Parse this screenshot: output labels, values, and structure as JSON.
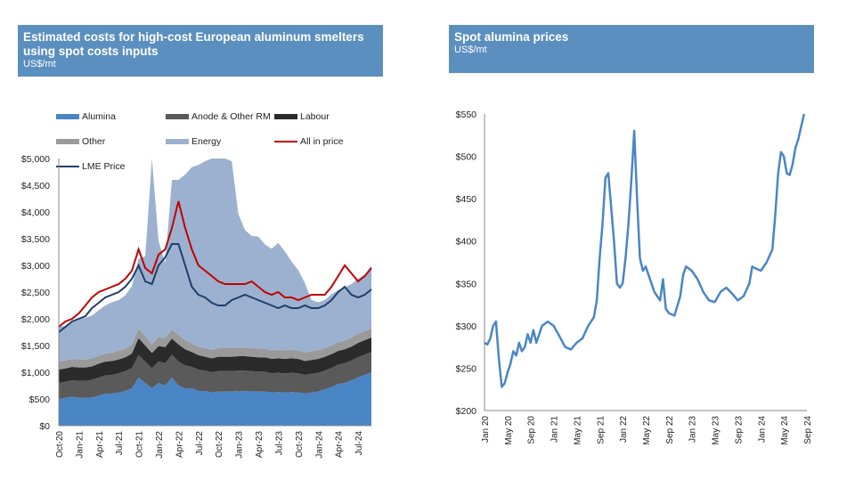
{
  "left_header": {
    "title": "Estimated costs for high-cost European aluminum smelters using spot costs inputs",
    "unit": "US$/mt"
  },
  "right_header": {
    "title": "Spot alumina prices",
    "unit": "US$/mt"
  },
  "legend": [
    {
      "label": "Alumina",
      "color": "#4a86c5",
      "kind": "area"
    },
    {
      "label": "Anode & Other RM",
      "color": "#5a5a5a",
      "kind": "area"
    },
    {
      "label": "Labour",
      "color": "#2b2b2b",
      "kind": "area"
    },
    {
      "label": "Other",
      "color": "#9a9a9a",
      "kind": "area"
    },
    {
      "label": "Energy",
      "color": "#9bb1cf",
      "kind": "area"
    },
    {
      "label": "All in price",
      "color": "#c00000",
      "kind": "line"
    },
    {
      "label": "LME Price",
      "color": "#1f3f6b",
      "kind": "line"
    }
  ],
  "chart_data": [
    {
      "type": "area",
      "title": "Estimated costs for high-cost European aluminum smelters using spot costs inputs",
      "ylabel": "US$/mt",
      "ylim": [
        0,
        5000
      ],
      "yticks": [
        "$0",
        "$500",
        "$1,000",
        "$1,500",
        "$2,000",
        "$2,500",
        "$3,000",
        "$3,500",
        "$4,000",
        "$4,500",
        "$5,000"
      ],
      "xticks": [
        "Oct-20",
        "Jan-21",
        "Apr-21",
        "Jul-21",
        "Oct-21",
        "Jan-22",
        "Apr-22",
        "Jul-22",
        "Oct-22",
        "Jan-23",
        "Apr-23",
        "Jul-23",
        "Oct-23",
        "Jan-24",
        "Apr-24",
        "Jul-24"
      ],
      "x_months": [
        "Oct-20",
        "Nov-20",
        "Dec-20",
        "Jan-21",
        "Feb-21",
        "Mar-21",
        "Apr-21",
        "May-21",
        "Jun-21",
        "Jul-21",
        "Aug-21",
        "Sep-21",
        "Oct-21",
        "Nov-21",
        "Dec-21",
        "Jan-22",
        "Feb-22",
        "Mar-22",
        "Apr-22",
        "May-22",
        "Jun-22",
        "Jul-22",
        "Aug-22",
        "Sep-22",
        "Oct-22",
        "Nov-22",
        "Dec-22",
        "Jan-23",
        "Feb-23",
        "Mar-23",
        "Apr-23",
        "May-23",
        "Jun-23",
        "Jul-23",
        "Aug-23",
        "Sep-23",
        "Oct-23",
        "Nov-23",
        "Dec-23",
        "Jan-24",
        "Feb-24",
        "Mar-24",
        "Apr-24",
        "May-24",
        "Jun-24",
        "Jul-24",
        "Aug-24",
        "Sep-24"
      ],
      "series": [
        {
          "name": "Alumina",
          "stacked": true,
          "values": [
            500,
            520,
            540,
            520,
            520,
            530,
            560,
            600,
            600,
            620,
            650,
            700,
            900,
            800,
            700,
            800,
            750,
            900,
            750,
            700,
            700,
            650,
            650,
            620,
            640,
            640,
            640,
            650,
            650,
            640,
            640,
            640,
            620,
            630,
            620,
            630,
            620,
            600,
            620,
            640,
            680,
            720,
            780,
            800,
            850,
            900,
            950,
            1000
          ]
        },
        {
          "name": "Anode & Other RM",
          "stacked": true,
          "values": [
            300,
            300,
            310,
            320,
            320,
            330,
            340,
            340,
            350,
            360,
            370,
            380,
            420,
            400,
            380,
            400,
            420,
            430,
            450,
            430,
            400,
            400,
            380,
            380,
            380,
            380,
            380,
            380,
            380,
            380,
            370,
            370,
            360,
            360,
            360,
            360,
            360,
            350,
            350,
            350,
            350,
            360,
            360,
            370,
            370,
            380,
            380,
            380
          ]
        },
        {
          "name": "Labour",
          "stacked": true,
          "values": [
            250,
            250,
            250,
            250,
            250,
            250,
            260,
            260,
            260,
            260,
            260,
            270,
            320,
            300,
            280,
            290,
            300,
            300,
            320,
            300,
            280,
            270,
            260,
            260,
            270,
            270,
            270,
            270,
            270,
            270,
            270,
            270,
            270,
            270,
            270,
            270,
            270,
            260,
            260,
            260,
            260,
            260,
            260,
            260,
            260,
            270,
            270,
            270
          ]
        },
        {
          "name": "Other",
          "stacked": true,
          "values": [
            150,
            150,
            150,
            150,
            150,
            150,
            150,
            150,
            150,
            160,
            160,
            160,
            180,
            170,
            160,
            170,
            170,
            170,
            180,
            170,
            160,
            160,
            160,
            160,
            160,
            160,
            160,
            160,
            160,
            160,
            160,
            160,
            160,
            160,
            160,
            160,
            160,
            160,
            160,
            160,
            160,
            160,
            160,
            160,
            170,
            170,
            170,
            170
          ]
        },
        {
          "name": "Energy",
          "stacked": true,
          "values": [
            650,
            650,
            700,
            750,
            780,
            800,
            850,
            900,
            950,
            950,
            1000,
            1100,
            1300,
            1500,
            3700,
            1800,
            1400,
            2800,
            2900,
            3100,
            3300,
            3400,
            3500,
            3600,
            3600,
            3600,
            3500,
            2500,
            2200,
            2100,
            2100,
            1950,
            1900,
            2000,
            1850,
            1650,
            1500,
            1300,
            960,
            900,
            900,
            960,
            980,
            1000,
            1000,
            1030,
            1050,
            1180
          ]
        },
        {
          "name": "All in price",
          "values": [
            1850,
            1950,
            2000,
            2100,
            2250,
            2400,
            2500,
            2550,
            2600,
            2650,
            2750,
            2900,
            3300,
            2950,
            2850,
            3200,
            3300,
            3700,
            4200,
            3700,
            3300,
            3000,
            2900,
            2800,
            2700,
            2650,
            2650,
            2650,
            2650,
            2700,
            2600,
            2500,
            2450,
            2500,
            2400,
            2400,
            2350,
            2400,
            2450,
            2450,
            2450,
            2600,
            2800,
            3000,
            2850,
            2700,
            2800,
            2950
          ]
        },
        {
          "name": "LME Price",
          "values": [
            1750,
            1850,
            1950,
            2000,
            2050,
            2200,
            2300,
            2400,
            2450,
            2500,
            2600,
            2750,
            3000,
            2700,
            2650,
            3000,
            3150,
            3400,
            3400,
            3000,
            2600,
            2450,
            2400,
            2300,
            2250,
            2250,
            2350,
            2400,
            2450,
            2400,
            2350,
            2300,
            2250,
            2200,
            2250,
            2200,
            2200,
            2250,
            2200,
            2200,
            2250,
            2350,
            2500,
            2600,
            2450,
            2400,
            2450,
            2550
          ]
        }
      ]
    },
    {
      "type": "line",
      "title": "Spot alumina prices",
      "ylabel": "US$/mt",
      "ylim": [
        200,
        550
      ],
      "yticks": [
        "$200",
        "$250",
        "$300",
        "$350",
        "$400",
        "$450",
        "$500",
        "$550"
      ],
      "xticks": [
        "Jan 20",
        "May 20",
        "Sep 20",
        "Jan 21",
        "May 21",
        "Sep 21",
        "Jan 22",
        "May 22",
        "Sep 22",
        "Jan 23",
        "May 23",
        "Sep 23",
        "Jan 24",
        "May 24",
        "Sep 24"
      ],
      "series": [
        {
          "name": "Spot alumina",
          "points": [
            [
              0,
              280
            ],
            [
              0.5,
              278
            ],
            [
              1,
              285
            ],
            [
              1.5,
              300
            ],
            [
              2,
              305
            ],
            [
              2.5,
              260
            ],
            [
              3,
              228
            ],
            [
              3.5,
              232
            ],
            [
              4,
              245
            ],
            [
              4.5,
              255
            ],
            [
              5,
              270
            ],
            [
              5.5,
              265
            ],
            [
              6,
              280
            ],
            [
              6.5,
              270
            ],
            [
              7,
              275
            ],
            [
              7.5,
              290
            ],
            [
              8,
              280
            ],
            [
              8.5,
              295
            ],
            [
              9,
              280
            ],
            [
              10,
              300
            ],
            [
              11,
              305
            ],
            [
              12,
              300
            ],
            [
              13,
              288
            ],
            [
              14,
              275
            ],
            [
              15,
              272
            ],
            [
              16,
              280
            ],
            [
              17,
              285
            ],
            [
              18,
              300
            ],
            [
              19,
              310
            ],
            [
              19.5,
              330
            ],
            [
              20,
              380
            ],
            [
              20.5,
              420
            ],
            [
              21,
              475
            ],
            [
              21.5,
              480
            ],
            [
              22,
              440
            ],
            [
              22.5,
              400
            ],
            [
              23,
              350
            ],
            [
              23.5,
              345
            ],
            [
              24,
              350
            ],
            [
              24.5,
              380
            ],
            [
              25,
              420
            ],
            [
              25.5,
              470
            ],
            [
              26,
              530
            ],
            [
              26.5,
              450
            ],
            [
              27,
              380
            ],
            [
              27.5,
              365
            ],
            [
              28,
              370
            ],
            [
              28.5,
              360
            ],
            [
              29,
              350
            ],
            [
              29.5,
              340
            ],
            [
              30,
              335
            ],
            [
              30.5,
              330
            ],
            [
              31,
              355
            ],
            [
              31.5,
              320
            ],
            [
              32,
              315
            ],
            [
              33,
              312
            ],
            [
              34,
              335
            ],
            [
              34.5,
              360
            ],
            [
              35,
              370
            ],
            [
              36,
              365
            ],
            [
              37,
              355
            ],
            [
              38,
              340
            ],
            [
              39,
              330
            ],
            [
              40,
              328
            ],
            [
              41,
              340
            ],
            [
              42,
              345
            ],
            [
              43,
              338
            ],
            [
              44,
              330
            ],
            [
              45,
              335
            ],
            [
              46,
              350
            ],
            [
              46.5,
              370
            ],
            [
              47,
              368
            ],
            [
              48,
              365
            ],
            [
              49,
              375
            ],
            [
              50,
              390
            ],
            [
              50.5,
              430
            ],
            [
              51,
              480
            ],
            [
              51.5,
              505
            ],
            [
              52,
              500
            ],
            [
              52.5,
              480
            ],
            [
              53,
              478
            ],
            [
              53.5,
              490
            ],
            [
              54,
              510
            ],
            [
              54.5,
              520
            ],
            [
              55,
              535
            ],
            [
              55.5,
              550
            ]
          ]
        }
      ]
    }
  ]
}
